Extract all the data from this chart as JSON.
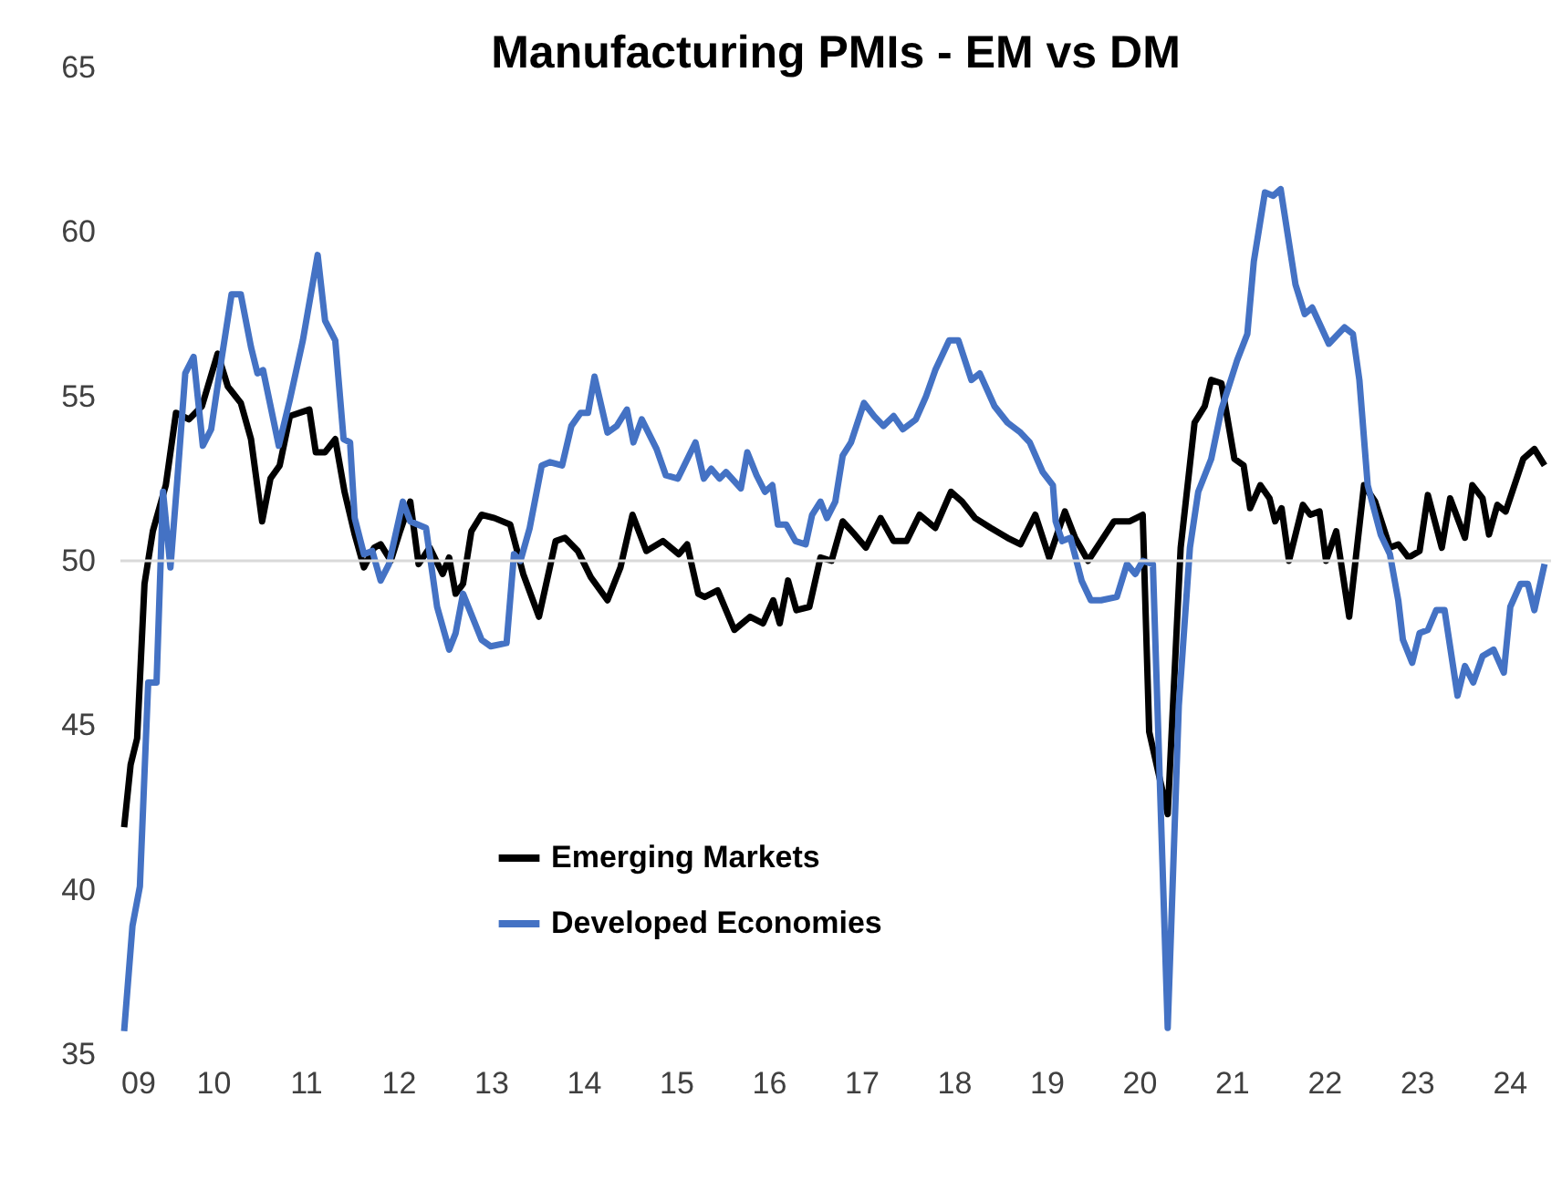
{
  "chart_data": {
    "type": "line",
    "title": "Manufacturing PMIs - EM vs DM",
    "xlim": [
      2009,
      2024.45
    ],
    "xticks": [
      {
        "value": 2009,
        "label": "09"
      },
      {
        "value": 2010,
        "label": "10"
      },
      {
        "value": 2011,
        "label": "11"
      },
      {
        "value": 2012,
        "label": "12"
      },
      {
        "value": 2013,
        "label": "13"
      },
      {
        "value": 2014,
        "label": "14"
      },
      {
        "value": 2015,
        "label": "15"
      },
      {
        "value": 2016,
        "label": "16"
      },
      {
        "value": 2017,
        "label": "17"
      },
      {
        "value": 2018,
        "label": "18"
      },
      {
        "value": 2019,
        "label": "19"
      },
      {
        "value": 2020,
        "label": "20"
      },
      {
        "value": 2021,
        "label": "21"
      },
      {
        "value": 2022,
        "label": "22"
      },
      {
        "value": 2023,
        "label": "23"
      },
      {
        "value": 2024,
        "label": "24"
      }
    ],
    "ylim": [
      35,
      65
    ],
    "yticks": [
      35,
      40,
      45,
      50,
      55,
      60,
      65
    ],
    "grid": false,
    "legend": "bottom",
    "line_style": "solid",
    "marker": "none",
    "ref_lines": [
      {
        "axis": "y",
        "value": 50,
        "color": "#d9d9d9"
      }
    ],
    "series": [
      {
        "name": "Emerging Markets",
        "color": "#000000",
        "x": [
          2009.04,
          2009.11,
          2009.18,
          2009.26,
          2009.35,
          2009.49,
          2009.6,
          2009.74,
          2009.88,
          2010.05,
          2010.16,
          2010.3,
          2010.41,
          2010.53,
          2010.62,
          2010.72,
          2010.83,
          2011.04,
          2011.11,
          2011.21,
          2011.32,
          2011.42,
          2011.53,
          2011.63,
          2011.74,
          2011.81,
          2011.92,
          2012.02,
          2012.13,
          2012.22,
          2012.34,
          2012.48,
          2012.55,
          2012.62,
          2012.7,
          2012.79,
          2012.9,
          2013.04,
          2013.21,
          2013.35,
          2013.52,
          2013.7,
          2013.8,
          2013.94,
          2014.08,
          2014.26,
          2014.4,
          2014.53,
          2014.68,
          2014.86,
          2015.03,
          2015.12,
          2015.24,
          2015.31,
          2015.45,
          2015.63,
          2015.8,
          2015.94,
          2016.05,
          2016.12,
          2016.21,
          2016.3,
          2016.44,
          2016.56,
          2016.68,
          2016.8,
          2016.93,
          2017.05,
          2017.21,
          2017.35,
          2017.49,
          2017.63,
          2017.8,
          2017.97,
          2018.09,
          2018.23,
          2018.4,
          2018.58,
          2018.72,
          2018.88,
          2019.03,
          2019.2,
          2019.31,
          2019.45,
          2019.59,
          2019.73,
          2019.9,
          2020.04,
          2020.11,
          2020.31,
          2020.45,
          2020.6,
          2020.71,
          2020.78,
          2020.89,
          2021.03,
          2021.13,
          2021.2,
          2021.31,
          2021.41,
          2021.47,
          2021.54,
          2021.62,
          2021.77,
          2021.85,
          2021.95,
          2022.02,
          2022.13,
          2022.27,
          2022.43,
          2022.55,
          2022.71,
          2022.8,
          2022.91,
          2023.03,
          2023.12,
          2023.27,
          2023.36,
          2023.52,
          2023.6,
          2023.71,
          2023.78,
          2023.87,
          2023.96,
          2024.15,
          2024.27,
          2024.38
        ],
        "values": [
          41.9,
          43.8,
          44.6,
          49.3,
          50.9,
          52.3,
          54.5,
          54.3,
          54.7,
          56.3,
          55.3,
          54.8,
          53.7,
          51.2,
          52.5,
          52.9,
          54.4,
          54.6,
          53.3,
          53.3,
          53.7,
          52.1,
          50.8,
          49.8,
          50.4,
          50.5,
          50.0,
          50.9,
          51.8,
          49.9,
          50.4,
          49.6,
          50.1,
          49.0,
          49.3,
          50.9,
          51.4,
          51.3,
          51.1,
          49.6,
          48.3,
          50.6,
          50.7,
          50.3,
          49.5,
          48.8,
          49.8,
          51.4,
          50.3,
          50.6,
          50.2,
          50.5,
          49.0,
          48.9,
          49.1,
          47.9,
          48.3,
          48.1,
          48.8,
          48.1,
          49.4,
          48.5,
          48.6,
          50.1,
          50.0,
          51.2,
          50.8,
          50.4,
          51.3,
          50.6,
          50.6,
          51.4,
          51.0,
          52.1,
          51.8,
          51.3,
          51.0,
          50.7,
          50.5,
          51.4,
          50.1,
          51.5,
          50.7,
          50.0,
          50.6,
          51.2,
          51.2,
          51.4,
          44.8,
          42.3,
          50.4,
          54.2,
          54.7,
          55.5,
          55.4,
          53.1,
          52.9,
          51.6,
          52.3,
          51.9,
          51.2,
          51.6,
          50.0,
          51.7,
          51.4,
          51.5,
          50.0,
          50.9,
          48.3,
          52.3,
          51.8,
          50.4,
          50.5,
          50.1,
          50.3,
          52.0,
          50.4,
          51.9,
          50.7,
          52.3,
          51.9,
          50.8,
          51.7,
          51.5,
          53.1,
          53.4,
          52.9
        ]
      },
      {
        "name": "Developed Economies",
        "color": "#4472c4",
        "x": [
          2009.04,
          2009.13,
          2009.21,
          2009.3,
          2009.39,
          2009.46,
          2009.54,
          2009.61,
          2009.7,
          2009.79,
          2009.89,
          2009.98,
          2010.09,
          2010.2,
          2010.3,
          2010.41,
          2010.48,
          2010.54,
          2010.71,
          2010.83,
          2010.97,
          2011.13,
          2011.21,
          2011.32,
          2011.41,
          2011.48,
          2011.53,
          2011.63,
          2011.72,
          2011.81,
          2011.9,
          2012.05,
          2012.13,
          2012.3,
          2012.42,
          2012.55,
          2012.62,
          2012.7,
          2012.9,
          2013.0,
          2013.17,
          2013.25,
          2013.32,
          2013.42,
          2013.55,
          2013.64,
          2013.77,
          2013.87,
          2013.97,
          2014.05,
          2014.12,
          2014.26,
          2014.36,
          2014.47,
          2014.54,
          2014.63,
          2014.79,
          2014.89,
          2015.02,
          2015.21,
          2015.3,
          2015.38,
          2015.47,
          2015.54,
          2015.7,
          2015.77,
          2015.87,
          2015.96,
          2016.04,
          2016.1,
          2016.19,
          2016.29,
          2016.4,
          2016.47,
          2016.56,
          2016.63,
          2016.72,
          2016.8,
          2016.89,
          2017.03,
          2017.14,
          2017.24,
          2017.35,
          2017.45,
          2017.59,
          2017.7,
          2017.8,
          2017.95,
          2018.05,
          2018.19,
          2018.28,
          2018.44,
          2018.58,
          2018.72,
          2018.82,
          2018.96,
          2019.07,
          2019.1,
          2019.17,
          2019.26,
          2019.38,
          2019.48,
          2019.59,
          2019.76,
          2019.87,
          2019.96,
          2020.04,
          2020.15,
          2020.31,
          2020.43,
          2020.55,
          2020.64,
          2020.78,
          2020.89,
          2021.06,
          2021.17,
          2021.24,
          2021.36,
          2021.45,
          2021.53,
          2021.69,
          2021.79,
          2021.87,
          2022.05,
          2022.22,
          2022.31,
          2022.38,
          2022.47,
          2022.61,
          2022.71,
          2022.8,
          2022.85,
          2022.95,
          2023.03,
          2023.12,
          2023.21,
          2023.3,
          2023.44,
          2023.52,
          2023.61,
          2023.71,
          2023.83,
          2023.94,
          2024.01,
          2024.12,
          2024.2,
          2024.27,
          2024.38
        ],
        "values": [
          35.7,
          38.9,
          40.1,
          46.3,
          46.3,
          52.1,
          49.8,
          52.3,
          55.7,
          56.2,
          53.5,
          54.0,
          56.1,
          58.1,
          58.1,
          56.5,
          55.7,
          55.8,
          53.5,
          54.9,
          56.7,
          59.3,
          57.3,
          56.7,
          53.7,
          53.6,
          51.3,
          50.2,
          50.3,
          49.4,
          49.9,
          51.8,
          51.2,
          51.0,
          48.6,
          47.3,
          47.8,
          49.0,
          47.6,
          47.4,
          47.5,
          50.2,
          50.0,
          51.0,
          52.9,
          53.0,
          52.9,
          54.1,
          54.5,
          54.5,
          55.6,
          53.9,
          54.1,
          54.6,
          53.6,
          54.3,
          53.4,
          52.6,
          52.5,
          53.6,
          52.5,
          52.8,
          52.5,
          52.7,
          52.2,
          53.3,
          52.6,
          52.1,
          52.3,
          51.1,
          51.1,
          50.6,
          50.5,
          51.4,
          51.8,
          51.3,
          51.8,
          53.2,
          53.6,
          54.8,
          54.4,
          54.1,
          54.4,
          54.0,
          54.3,
          55.0,
          55.8,
          56.7,
          56.7,
          55.5,
          55.7,
          54.7,
          54.2,
          53.9,
          53.6,
          52.7,
          52.3,
          51.2,
          50.6,
          50.7,
          49.4,
          48.8,
          48.8,
          48.9,
          49.9,
          49.6,
          50.0,
          49.9,
          35.8,
          45.6,
          50.4,
          52.1,
          53.1,
          54.6,
          56.1,
          56.9,
          59.1,
          61.2,
          61.1,
          61.3,
          58.4,
          57.5,
          57.7,
          56.6,
          57.1,
          56.9,
          55.5,
          52.3,
          50.8,
          50.2,
          48.8,
          47.6,
          46.9,
          47.8,
          47.9,
          48.5,
          48.5,
          45.9,
          46.8,
          46.3,
          47.1,
          47.3,
          46.6,
          48.6,
          49.3,
          49.3,
          48.5,
          49.9
        ]
      }
    ]
  }
}
